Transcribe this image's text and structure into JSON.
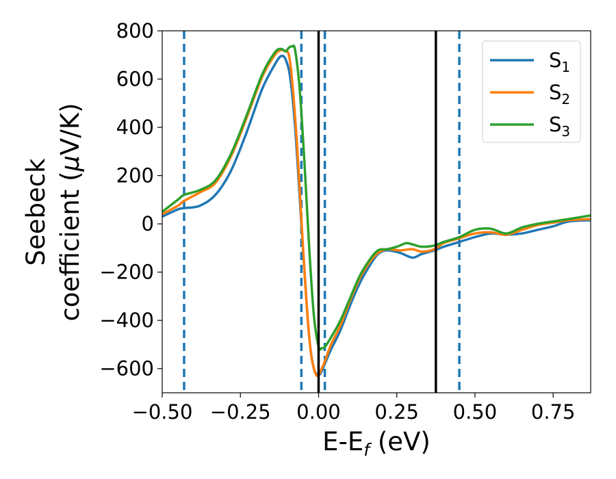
{
  "chart_data": {
    "type": "line",
    "xlabel": "E-E",
    "xlabel_sub": "f",
    "xlabel_unit": " (eV)",
    "ylabel_line1": "Seebeck",
    "ylabel_line2": "coefficient  (",
    "ylabel_mu": "μ",
    "ylabel_unit": "V/K)",
    "xlim": [
      -0.5,
      0.87
    ],
    "ylim": [
      -700,
      800
    ],
    "xticks": [
      -0.5,
      -0.25,
      0.0,
      0.25,
      0.5,
      0.75
    ],
    "xtick_labels": [
      "−0.50",
      "−0.25",
      "0.00",
      "0.25",
      "0.50",
      "0.75"
    ],
    "yticks": [
      -600,
      -400,
      -200,
      0,
      200,
      400,
      600,
      800
    ],
    "ytick_labels": [
      "−600",
      "−400",
      "−200",
      "0",
      "200",
      "400",
      "600",
      "800"
    ],
    "grid": false,
    "legend_position": "top-right",
    "vlines_solid": [
      0.0,
      0.375
    ],
    "vlines_dashed": [
      -0.43,
      -0.055,
      0.02,
      0.45
    ],
    "vline_solid_color": "#000000",
    "vline_dashed_color": "#1f77b4",
    "series": [
      {
        "name": "S",
        "subscript": "1",
        "color": "#1f77b4",
        "x": [
          -0.5,
          -0.45,
          -0.43,
          -0.38,
          -0.33,
          -0.28,
          -0.23,
          -0.18,
          -0.14,
          -0.12,
          -0.105,
          -0.09,
          -0.075,
          -0.06,
          -0.045,
          -0.03,
          -0.015,
          0.0,
          0.01,
          0.02,
          0.04,
          0.07,
          0.1,
          0.13,
          0.16,
          0.19,
          0.22,
          0.26,
          0.3,
          0.33,
          0.37,
          0.4,
          0.45,
          0.5,
          0.55,
          0.6,
          0.65,
          0.7,
          0.75,
          0.8,
          0.87
        ],
        "y": [
          30,
          60,
          65,
          75,
          120,
          220,
          380,
          560,
          660,
          695,
          680,
          600,
          400,
          100,
          -200,
          -470,
          -600,
          -625,
          -610,
          -580,
          -520,
          -440,
          -340,
          -250,
          -180,
          -125,
          -110,
          -120,
          -140,
          -125,
          -110,
          -95,
          -75,
          -55,
          -40,
          -45,
          -40,
          -25,
          -10,
          10,
          15
        ]
      },
      {
        "name": "S",
        "subscript": "2",
        "color": "#ff7f0e",
        "x": [
          -0.5,
          -0.45,
          -0.43,
          -0.38,
          -0.33,
          -0.28,
          -0.23,
          -0.18,
          -0.14,
          -0.12,
          -0.105,
          -0.095,
          -0.085,
          -0.07,
          -0.055,
          -0.04,
          -0.025,
          -0.01,
          0.0,
          0.01,
          0.02,
          0.04,
          0.07,
          0.1,
          0.13,
          0.16,
          0.19,
          0.22,
          0.26,
          0.3,
          0.33,
          0.37,
          0.4,
          0.45,
          0.5,
          0.55,
          0.6,
          0.65,
          0.7,
          0.75,
          0.8,
          0.87
        ],
        "y": [
          40,
          75,
          95,
          130,
          170,
          280,
          440,
          610,
          700,
          720,
          715,
          700,
          600,
          350,
          20,
          -300,
          -530,
          -620,
          -625,
          -600,
          -570,
          -500,
          -420,
          -320,
          -230,
          -165,
          -120,
          -105,
          -110,
          -105,
          -115,
          -105,
          -80,
          -60,
          -40,
          -35,
          -45,
          -25,
          -5,
          5,
          15,
          20
        ]
      },
      {
        "name": "S",
        "subscript": "3",
        "color": "#2ca02c",
        "x": [
          -0.5,
          -0.45,
          -0.43,
          -0.38,
          -0.33,
          -0.28,
          -0.23,
          -0.18,
          -0.14,
          -0.12,
          -0.105,
          -0.095,
          -0.085,
          -0.075,
          -0.06,
          -0.045,
          -0.03,
          -0.015,
          0.0,
          0.01,
          0.02,
          0.04,
          0.07,
          0.1,
          0.13,
          0.16,
          0.19,
          0.22,
          0.25,
          0.28,
          0.3,
          0.33,
          0.37,
          0.4,
          0.45,
          0.5,
          0.55,
          0.6,
          0.65,
          0.7,
          0.75,
          0.8,
          0.87
        ],
        "y": [
          50,
          100,
          120,
          140,
          180,
          290,
          450,
          620,
          710,
          725,
          715,
          730,
          735,
          720,
          550,
          250,
          -100,
          -380,
          -510,
          -515,
          -510,
          -470,
          -400,
          -310,
          -220,
          -155,
          -110,
          -105,
          -95,
          -80,
          -85,
          -95,
          -90,
          -75,
          -55,
          -25,
          -20,
          -40,
          -15,
          0,
          10,
          20,
          35
        ]
      }
    ]
  }
}
